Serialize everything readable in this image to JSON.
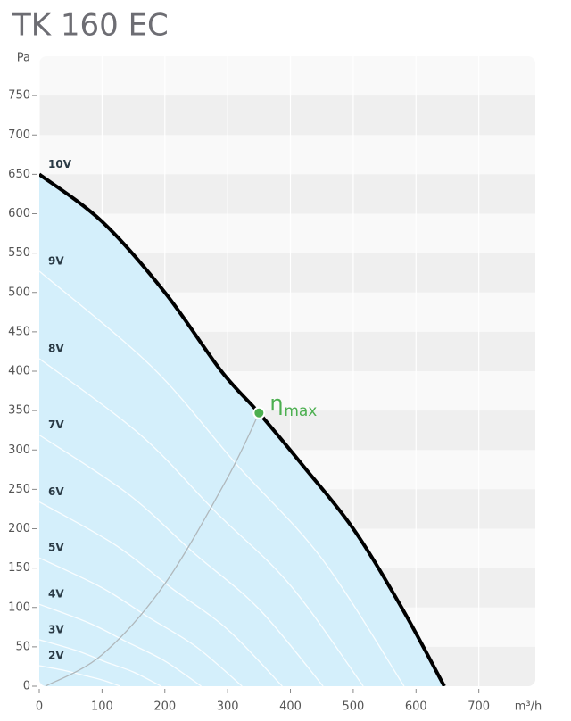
{
  "chart_data": {
    "type": "line",
    "title": "TK 160 EC",
    "x_label": "m³/h",
    "y_label": "Pa",
    "xlim": [
      0,
      790
    ],
    "ylim": [
      0,
      800
    ],
    "xticks": [
      0,
      100,
      200,
      300,
      400,
      500,
      600,
      700
    ],
    "yticks": [
      0,
      50,
      100,
      150,
      200,
      250,
      300,
      350,
      400,
      450,
      500,
      550,
      600,
      650,
      700,
      750
    ],
    "series": [
      {
        "name": "10V",
        "color": "#000000",
        "fill": "#d4effb",
        "x": [
          0,
          100,
          200,
          290,
          350,
          420,
          500,
          577,
          645
        ],
        "values": [
          650,
          590,
          500,
          400,
          347,
          280,
          200,
          100,
          0
        ]
      },
      {
        "name": "9V",
        "color": "#ffffff",
        "x": [
          0,
          180,
          315,
          450,
          581
        ],
        "values": [
          527,
          405,
          281,
          162,
          0
        ]
      },
      {
        "name": "8V",
        "color": "#ffffff",
        "x": [
          0,
          160,
          280,
          400,
          516
        ],
        "values": [
          416,
          320,
          222,
          128,
          0
        ]
      },
      {
        "name": "7V",
        "color": "#ffffff",
        "x": [
          0,
          140,
          245,
          350,
          452
        ],
        "values": [
          319,
          245,
          170,
          98,
          0
        ]
      },
      {
        "name": "6V",
        "color": "#ffffff",
        "x": [
          0,
          120,
          210,
          300,
          387
        ],
        "values": [
          234,
          180,
          125,
          72,
          0
        ]
      },
      {
        "name": "5V",
        "color": "#ffffff",
        "x": [
          0,
          100,
          175,
          250,
          323
        ],
        "values": [
          163,
          125,
          87,
          50,
          0
        ]
      },
      {
        "name": "4V",
        "color": "#ffffff",
        "x": [
          0,
          80,
          140,
          200,
          258
        ],
        "values": [
          104,
          80,
          56,
          32,
          0
        ]
      },
      {
        "name": "3V",
        "color": "#ffffff",
        "x": [
          0,
          60,
          105,
          150,
          194
        ],
        "values": [
          59,
          45,
          31,
          18,
          0
        ]
      },
      {
        "name": "2V",
        "color": "#ffffff",
        "x": [
          0,
          40,
          70,
          100,
          129
        ],
        "values": [
          26,
          20,
          14,
          8,
          0
        ]
      }
    ],
    "efficiency_curve": {
      "color": "#b0b8bc",
      "x": [
        10,
        100,
        200,
        300,
        350
      ],
      "values": [
        0,
        40,
        130,
        265,
        347
      ]
    },
    "annotation": {
      "text": "η",
      "subscript": "max",
      "x": 350,
      "y": 347,
      "color": "#4caf50"
    }
  }
}
